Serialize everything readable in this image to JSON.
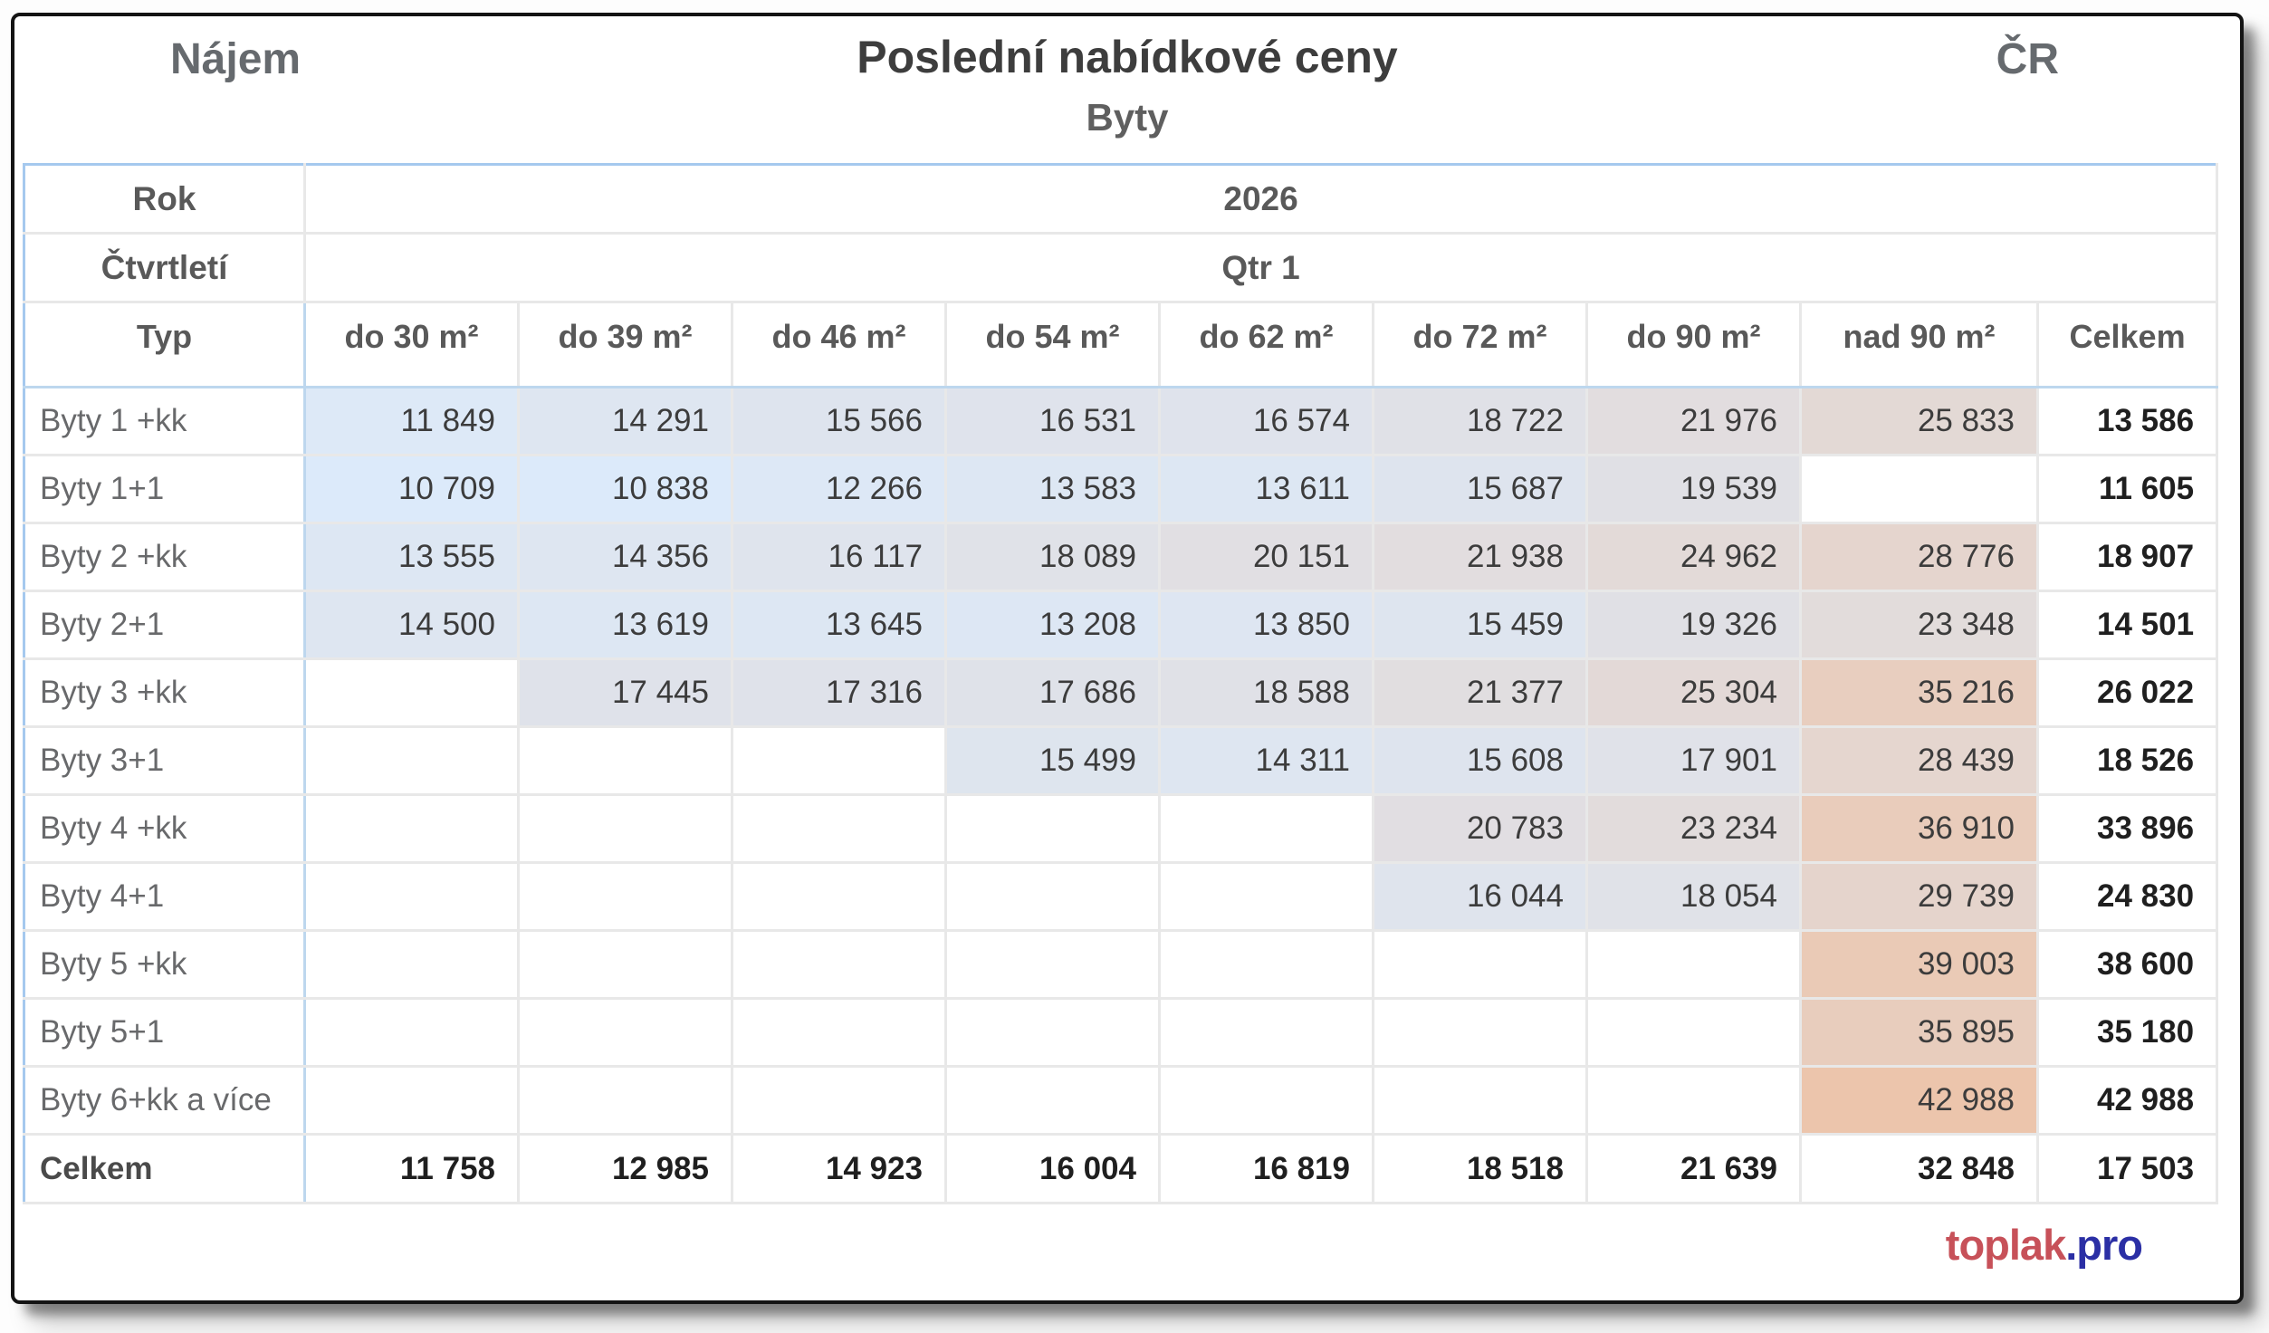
{
  "page": {
    "corner_left": "Nájem",
    "title": "Poslední nabídkové ceny",
    "subtitle": "Byty",
    "corner_right": "ČR"
  },
  "filters": {
    "year_label": "Rok",
    "year_value": "2026",
    "quarter_label": "Čtvrtletí",
    "quarter_value": "Qtr 1"
  },
  "brand": {
    "red": "toplak",
    "blue": ".pro"
  },
  "colors": {
    "heat_min": "#DCEAFA",
    "heat_max": "#ECC5AC",
    "table_border": "#A5C9EE",
    "header_divider": "#BDD7EE",
    "grid": "#E8E8E8",
    "brand_red": "#C75159",
    "brand_blue": "#2B2FA5",
    "text_header": "#595959",
    "text_value": "#3C3C3C",
    "text_total": "#1F1F1F"
  },
  "chart_data": {
    "type": "heatmap",
    "title": "Poslední nabídkové ceny",
    "subtitle": "Byty",
    "measure": "Nájem",
    "region": "ČR",
    "year": "2026",
    "quarter": "Qtr 1",
    "row_header": "Typ",
    "totals_label": "Celkem",
    "columns": [
      "do 30 m²",
      "do 39 m²",
      "do 46 m²",
      "do 54 m²",
      "do 62 m²",
      "do 72 m²",
      "do 90 m²",
      "nad 90 m²"
    ],
    "rows": [
      "Byty 1 +kk",
      "Byty 1+1",
      "Byty 2 +kk",
      "Byty 2+1",
      "Byty 3 +kk",
      "Byty 3+1",
      "Byty 4 +kk",
      "Byty 4+1",
      "Byty 5 +kk",
      "Byty 5+1",
      "Byty 6+kk a více"
    ],
    "values": [
      [
        11849,
        14291,
        15566,
        16531,
        16574,
        18722,
        21976,
        25833
      ],
      [
        10709,
        10838,
        12266,
        13583,
        13611,
        15687,
        19539,
        null
      ],
      [
        13555,
        14356,
        16117,
        18089,
        20151,
        21938,
        24962,
        28776
      ],
      [
        14500,
        13619,
        13645,
        13208,
        13850,
        15459,
        19326,
        23348
      ],
      [
        null,
        17445,
        17316,
        17686,
        18588,
        21377,
        25304,
        35216
      ],
      [
        null,
        null,
        null,
        15499,
        14311,
        15608,
        17901,
        28439
      ],
      [
        null,
        null,
        null,
        null,
        null,
        20783,
        23234,
        36910
      ],
      [
        null,
        null,
        null,
        null,
        null,
        16044,
        18054,
        29739
      ],
      [
        null,
        null,
        null,
        null,
        null,
        null,
        null,
        39003
      ],
      [
        null,
        null,
        null,
        null,
        null,
        null,
        null,
        35895
      ],
      [
        null,
        null,
        null,
        null,
        null,
        null,
        null,
        42988
      ]
    ],
    "row_totals": [
      13586,
      11605,
      18907,
      14501,
      26022,
      18526,
      33896,
      24830,
      38600,
      35180,
      42988
    ],
    "column_totals": [
      11758,
      12985,
      14923,
      16004,
      16819,
      18518,
      21639,
      32848
    ],
    "grand_total": 17503,
    "color_scale": {
      "min_color": "#DCEAFA",
      "max_color": "#ECC5AC"
    },
    "legend_position": "none",
    "grid": true
  }
}
